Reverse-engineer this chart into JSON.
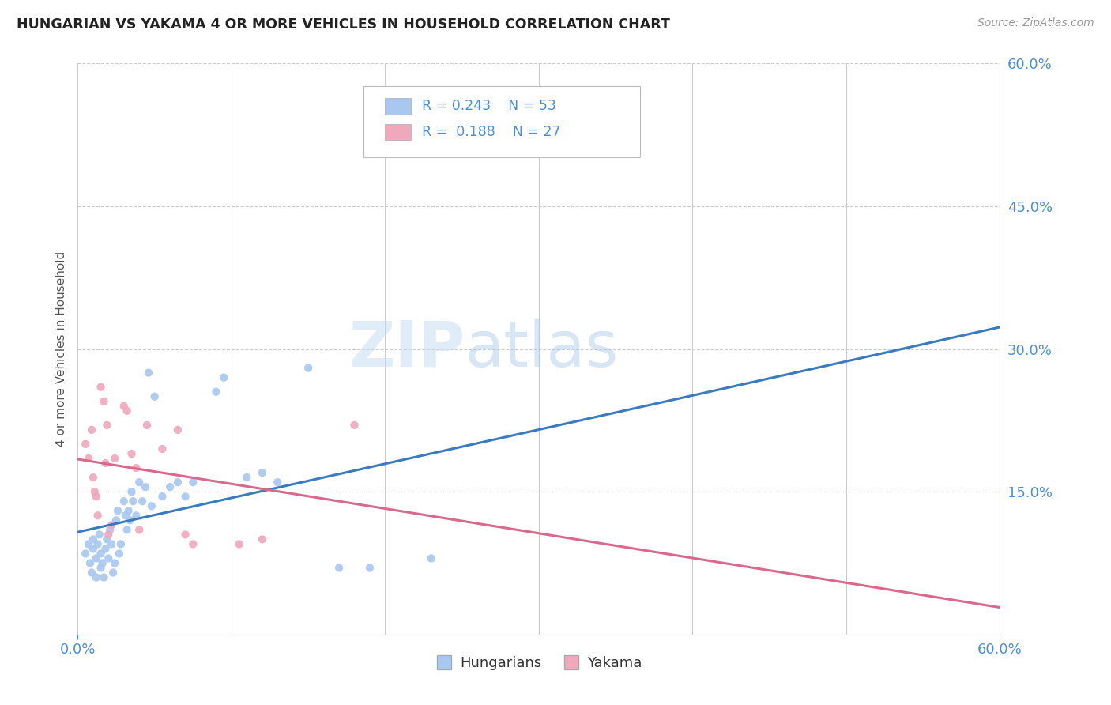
{
  "title": "HUNGARIAN VS YAKAMA 4 OR MORE VEHICLES IN HOUSEHOLD CORRELATION CHART",
  "source": "Source: ZipAtlas.com",
  "ylabel": "4 or more Vehicles in Household",
  "xlim": [
    0.0,
    0.6
  ],
  "ylim": [
    0.0,
    0.6
  ],
  "ytick_vals": [
    0.15,
    0.3,
    0.45,
    0.6
  ],
  "ytick_labels": [
    "15.0%",
    "30.0%",
    "45.0%",
    "60.0%"
  ],
  "xtick_vals": [
    0.0,
    0.1,
    0.2,
    0.3,
    0.4,
    0.5,
    0.6
  ],
  "grid_color": "#cccccc",
  "watermark_zip": "ZIP",
  "watermark_atlas": "atlas",
  "hungarian_color": "#a8c8f0",
  "yakama_color": "#f0a8bc",
  "hungarian_R": 0.243,
  "hungarian_N": 53,
  "yakama_R": 0.188,
  "yakama_N": 27,
  "hungarian_line_color": "#3a7abf",
  "yakama_line_color": "#d9698a",
  "hungarian_scatter": [
    [
      0.005,
      0.085
    ],
    [
      0.007,
      0.095
    ],
    [
      0.008,
      0.075
    ],
    [
      0.009,
      0.065
    ],
    [
      0.01,
      0.1
    ],
    [
      0.01,
      0.09
    ],
    [
      0.012,
      0.06
    ],
    [
      0.012,
      0.08
    ],
    [
      0.013,
      0.095
    ],
    [
      0.014,
      0.105
    ],
    [
      0.015,
      0.07
    ],
    [
      0.015,
      0.085
    ],
    [
      0.016,
      0.075
    ],
    [
      0.017,
      0.06
    ],
    [
      0.018,
      0.09
    ],
    [
      0.019,
      0.1
    ],
    [
      0.02,
      0.08
    ],
    [
      0.021,
      0.11
    ],
    [
      0.022,
      0.095
    ],
    [
      0.023,
      0.065
    ],
    [
      0.024,
      0.075
    ],
    [
      0.025,
      0.12
    ],
    [
      0.026,
      0.13
    ],
    [
      0.027,
      0.085
    ],
    [
      0.028,
      0.095
    ],
    [
      0.03,
      0.14
    ],
    [
      0.031,
      0.125
    ],
    [
      0.032,
      0.11
    ],
    [
      0.033,
      0.13
    ],
    [
      0.034,
      0.12
    ],
    [
      0.035,
      0.15
    ],
    [
      0.036,
      0.14
    ],
    [
      0.038,
      0.125
    ],
    [
      0.04,
      0.16
    ],
    [
      0.042,
      0.14
    ],
    [
      0.044,
      0.155
    ],
    [
      0.046,
      0.275
    ],
    [
      0.048,
      0.135
    ],
    [
      0.05,
      0.25
    ],
    [
      0.055,
      0.145
    ],
    [
      0.06,
      0.155
    ],
    [
      0.065,
      0.16
    ],
    [
      0.07,
      0.145
    ],
    [
      0.075,
      0.16
    ],
    [
      0.09,
      0.255
    ],
    [
      0.095,
      0.27
    ],
    [
      0.11,
      0.165
    ],
    [
      0.12,
      0.17
    ],
    [
      0.13,
      0.16
    ],
    [
      0.15,
      0.28
    ],
    [
      0.17,
      0.07
    ],
    [
      0.19,
      0.07
    ],
    [
      0.23,
      0.08
    ]
  ],
  "yakama_scatter": [
    [
      0.005,
      0.2
    ],
    [
      0.007,
      0.185
    ],
    [
      0.009,
      0.215
    ],
    [
      0.01,
      0.165
    ],
    [
      0.011,
      0.15
    ],
    [
      0.012,
      0.145
    ],
    [
      0.013,
      0.125
    ],
    [
      0.015,
      0.26
    ],
    [
      0.017,
      0.245
    ],
    [
      0.018,
      0.18
    ],
    [
      0.019,
      0.22
    ],
    [
      0.02,
      0.105
    ],
    [
      0.022,
      0.115
    ],
    [
      0.024,
      0.185
    ],
    [
      0.03,
      0.24
    ],
    [
      0.032,
      0.235
    ],
    [
      0.035,
      0.19
    ],
    [
      0.038,
      0.175
    ],
    [
      0.04,
      0.11
    ],
    [
      0.045,
      0.22
    ],
    [
      0.055,
      0.195
    ],
    [
      0.065,
      0.215
    ],
    [
      0.07,
      0.105
    ],
    [
      0.075,
      0.095
    ],
    [
      0.105,
      0.095
    ],
    [
      0.12,
      0.1
    ],
    [
      0.18,
      0.22
    ]
  ],
  "background_color": "#ffffff",
  "title_color": "#222222",
  "axis_label_color": "#555555",
  "tick_color": "#4a90d9",
  "legend_label_hungarian": "Hungarians",
  "legend_label_yakama": "Yakama"
}
